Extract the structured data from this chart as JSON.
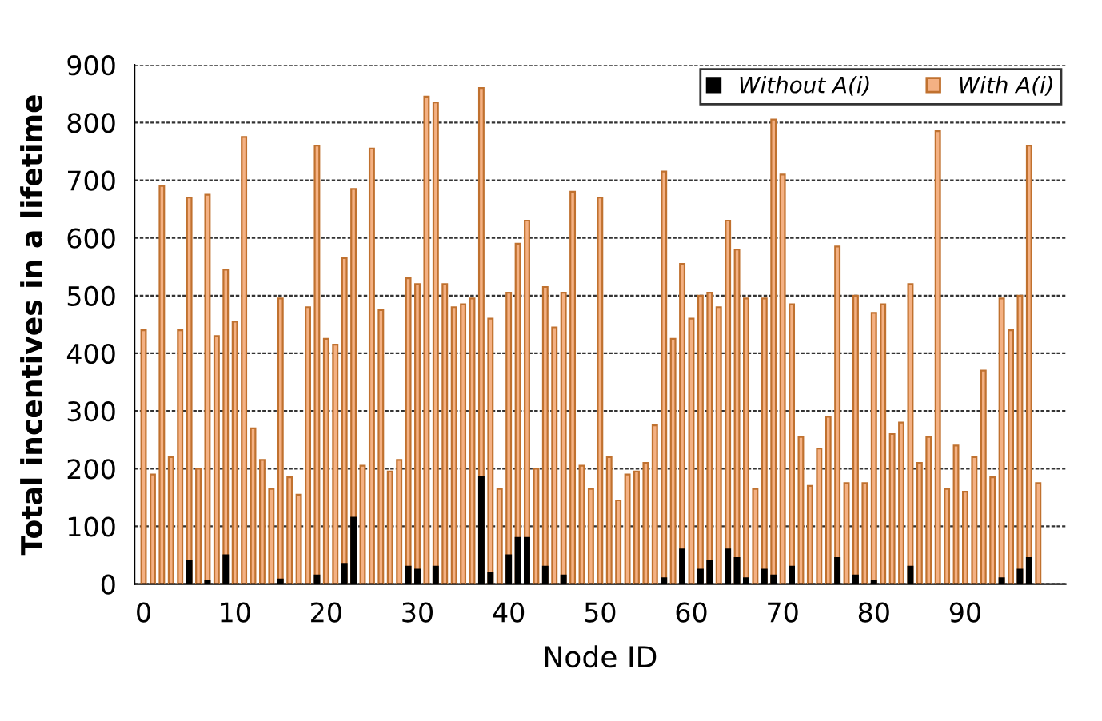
{
  "chart_data": {
    "type": "bar",
    "xlabel": "Node ID",
    "ylabel": "Total incentives in a lifetime",
    "x": [
      0,
      1,
      2,
      3,
      4,
      5,
      6,
      7,
      8,
      9,
      10,
      11,
      12,
      13,
      14,
      15,
      16,
      17,
      18,
      19,
      20,
      21,
      22,
      23,
      24,
      25,
      26,
      27,
      28,
      29,
      30,
      31,
      32,
      33,
      34,
      35,
      36,
      37,
      38,
      39,
      40,
      41,
      42,
      43,
      44,
      45,
      46,
      47,
      48,
      49,
      50,
      51,
      52,
      53,
      54,
      55,
      56,
      57,
      58,
      59,
      60,
      61,
      62,
      63,
      64,
      65,
      66,
      67,
      68,
      69,
      70,
      71,
      72,
      73,
      74,
      75,
      76,
      77,
      78,
      79,
      80,
      81,
      82,
      83,
      84,
      85,
      86,
      87,
      88,
      89,
      90,
      91,
      92,
      93,
      94,
      95,
      96,
      97,
      98
    ],
    "series": [
      {
        "name": "Without A(i)",
        "color": "#000000",
        "values": [
          0,
          0,
          0,
          0,
          0,
          40,
          0,
          5,
          0,
          50,
          0,
          0,
          0,
          0,
          0,
          8,
          0,
          0,
          0,
          15,
          0,
          0,
          35,
          115,
          0,
          0,
          0,
          0,
          0,
          30,
          25,
          0,
          30,
          0,
          0,
          0,
          0,
          185,
          20,
          0,
          50,
          80,
          80,
          0,
          30,
          0,
          15,
          0,
          0,
          0,
          0,
          0,
          0,
          0,
          0,
          0,
          0,
          10,
          0,
          60,
          0,
          25,
          40,
          0,
          60,
          45,
          10,
          0,
          25,
          15,
          0,
          30,
          0,
          0,
          0,
          0,
          45,
          0,
          15,
          0,
          5,
          0,
          0,
          0,
          30,
          0,
          0,
          0,
          0,
          0,
          0,
          0,
          0,
          0,
          10,
          0,
          25,
          45,
          0
        ]
      },
      {
        "name": "With A(i)",
        "color": "#f4b183",
        "values": [
          440,
          190,
          690,
          220,
          440,
          670,
          200,
          675,
          430,
          545,
          455,
          775,
          270,
          215,
          165,
          495,
          185,
          155,
          480,
          760,
          425,
          415,
          565,
          685,
          205,
          755,
          475,
          195,
          215,
          530,
          520,
          845,
          835,
          520,
          480,
          485,
          495,
          860,
          460,
          165,
          505,
          590,
          630,
          200,
          515,
          445,
          505,
          680,
          205,
          165,
          670,
          220,
          145,
          190,
          195,
          210,
          275,
          715,
          425,
          555,
          460,
          500,
          505,
          480,
          630,
          580,
          495,
          165,
          495,
          805,
          710,
          485,
          255,
          170,
          235,
          290,
          585,
          175,
          500,
          175,
          470,
          485,
          260,
          280,
          520,
          210,
          255,
          785,
          165,
          240,
          160,
          220,
          370,
          185,
          495,
          440,
          500,
          760,
          175
        ]
      }
    ],
    "xlim": [
      -1,
      101
    ],
    "xticks": [
      0,
      10,
      20,
      30,
      40,
      50,
      60,
      70,
      80,
      90
    ],
    "ylim": [
      0,
      900
    ],
    "yticks": [
      0,
      100,
      200,
      300,
      400,
      500,
      600,
      700,
      800,
      900
    ],
    "grid": "y",
    "legend": "top right"
  }
}
